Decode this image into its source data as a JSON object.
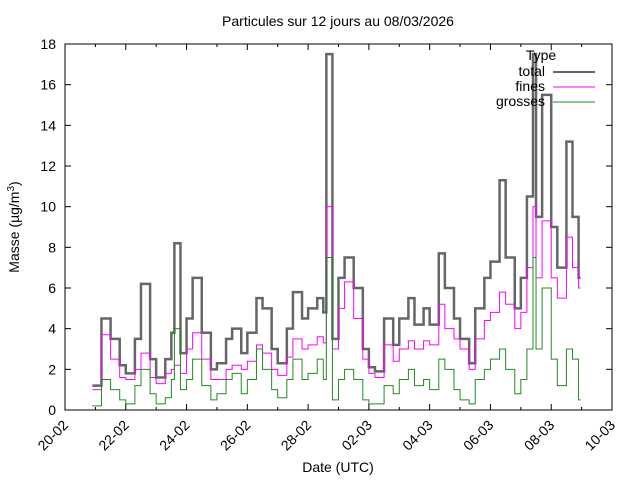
{
  "chart_data": {
    "type": "line",
    "title": "Particules sur 12 jours au 08/03/2026",
    "xlabel": "Date (UTC)",
    "ylabel": "Masse (µg/m³)",
    "ylabel_main": "Masse (µg/m",
    "ylabel_sup": "3",
    "ylabel_end": ")",
    "xlim_days_since_20_02": [
      0,
      18
    ],
    "ylim": [
      0,
      18
    ],
    "x_tick_labels": [
      "20-02",
      "22-02",
      "24-02",
      "26-02",
      "28-02",
      "02-03",
      "04-03",
      "06-03",
      "08-03",
      "10-03"
    ],
    "y_tick_labels": [
      "0",
      "2",
      "4",
      "6",
      "8",
      "10",
      "12",
      "14",
      "16",
      "18"
    ],
    "legend": {
      "title": "Type",
      "placement": "top-right"
    },
    "grid": false,
    "x_days": [
      0.9,
      1.2,
      1.5,
      1.8,
      2.0,
      2.3,
      2.5,
      2.8,
      3.0,
      3.3,
      3.5,
      3.6,
      3.8,
      4.0,
      4.2,
      4.5,
      4.8,
      5.0,
      5.3,
      5.5,
      5.8,
      6.0,
      6.3,
      6.5,
      6.8,
      7.0,
      7.3,
      7.5,
      7.8,
      8.0,
      8.3,
      8.5,
      8.6,
      8.8,
      9.0,
      9.2,
      9.5,
      9.8,
      10.0,
      10.2,
      10.5,
      10.8,
      11.0,
      11.3,
      11.5,
      11.8,
      12.0,
      12.3,
      12.5,
      12.8,
      13.0,
      13.3,
      13.5,
      13.8,
      14.0,
      14.3,
      14.5,
      14.8,
      15.0,
      15.2,
      15.4,
      15.5,
      15.7,
      16.0,
      16.2,
      16.5,
      16.7,
      16.9
    ],
    "series": [
      {
        "name": "total",
        "color": "#666666",
        "values": [
          1.2,
          4.5,
          3.5,
          2.2,
          1.8,
          3.5,
          6.2,
          2.5,
          1.6,
          2.5,
          3.8,
          8.2,
          2.8,
          4.5,
          6.5,
          3.8,
          2.0,
          2.3,
          3.5,
          4.0,
          2.8,
          3.8,
          5.5,
          5.0,
          3.0,
          2.3,
          4.0,
          5.8,
          4.5,
          5.0,
          5.5,
          4.8,
          17.5,
          3.5,
          6.5,
          7.5,
          6.0,
          3.0,
          2.1,
          1.9,
          4.5,
          3.2,
          4.5,
          5.5,
          4.2,
          5.0,
          4.2,
          7.7,
          6.0,
          4.5,
          3.5,
          2.3,
          5.0,
          6.5,
          7.3,
          11.3,
          7.5,
          5.0,
          6.5,
          10.5,
          17.5,
          9.5,
          15.5,
          9.0,
          7.0,
          13.2,
          9.5,
          6.5
        ]
      },
      {
        "name": "fines",
        "color": "#ff00ff",
        "values": [
          1.0,
          3.7,
          2.5,
          1.6,
          1.5,
          2.0,
          2.8,
          1.6,
          1.3,
          1.8,
          2.0,
          2.2,
          1.8,
          3.0,
          3.8,
          2.5,
          1.5,
          1.5,
          2.0,
          2.2,
          2.0,
          2.4,
          3.2,
          2.8,
          2.0,
          1.7,
          2.6,
          3.5,
          3.0,
          3.2,
          3.6,
          3.3,
          10.0,
          3.0,
          5.0,
          6.3,
          4.5,
          2.5,
          1.8,
          1.6,
          3.2,
          2.4,
          3.0,
          3.4,
          3.0,
          3.4,
          3.2,
          5.2,
          4.0,
          3.5,
          3.0,
          2.0,
          3.5,
          4.4,
          4.8,
          5.8,
          5.2,
          4.0,
          4.8,
          7.0,
          10.0,
          6.5,
          9.3,
          6.5,
          5.5,
          8.5,
          7.0,
          6.0
        ]
      },
      {
        "name": "grosses",
        "color": "#228b22",
        "values": [
          0.2,
          1.5,
          1.0,
          0.5,
          0.3,
          1.2,
          2.0,
          0.8,
          0.3,
          0.6,
          1.5,
          4.0,
          1.0,
          1.5,
          2.5,
          1.2,
          0.5,
          0.8,
          1.5,
          1.8,
          0.8,
          1.5,
          3.0,
          2.0,
          1.0,
          0.6,
          1.5,
          2.5,
          1.5,
          1.8,
          2.5,
          1.5,
          7.5,
          0.5,
          1.5,
          2.0,
          1.5,
          0.5,
          0.3,
          0.3,
          1.2,
          0.8,
          1.5,
          2.0,
          1.2,
          1.5,
          1.0,
          2.5,
          2.0,
          1.0,
          0.5,
          0.3,
          1.5,
          2.0,
          2.5,
          3.0,
          2.0,
          0.8,
          1.5,
          3.0,
          7.5,
          3.0,
          6.0,
          2.5,
          1.2,
          3.0,
          2.5,
          0.5
        ]
      }
    ]
  }
}
